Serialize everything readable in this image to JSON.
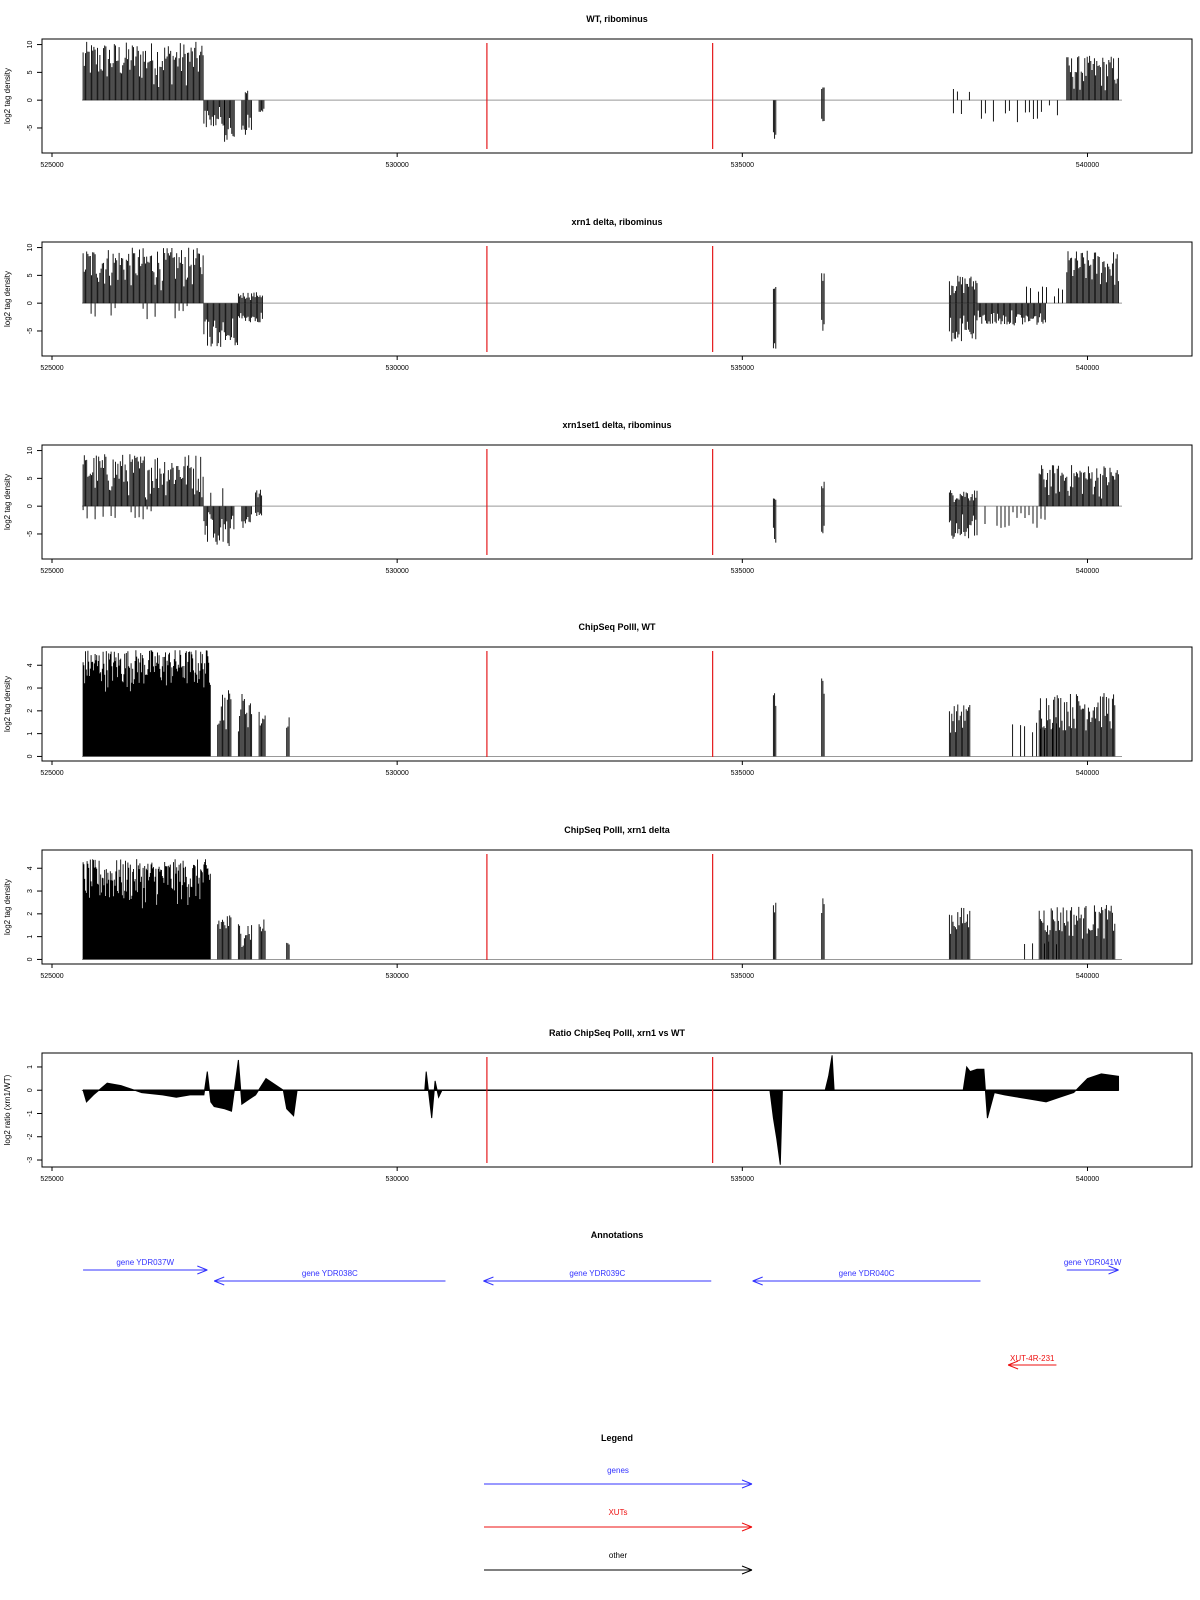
{
  "figure": {
    "x_range": [
      525000,
      540500
    ],
    "x_ticks": [
      525000,
      530000,
      535000,
      540000
    ],
    "x_tick_labels": [
      "525000",
      "530000",
      "535000",
      "540000"
    ],
    "marker_lines": [
      531300,
      534570
    ],
    "colors": {
      "signal": "#000000",
      "marker": "#e41a1c",
      "genes": "#3333ff",
      "xuts": "#ee1111",
      "other": "#000000",
      "zero_line": "#999999"
    }
  },
  "chart_data": [
    {
      "type": "bar",
      "title": "WT, ribominus",
      "ylabel": "log2 tag density",
      "ylim": [
        -9.5,
        11
      ],
      "y_ticks": [
        -5,
        0,
        5,
        10
      ],
      "y_tick_labels": [
        "-5",
        "0",
        "5",
        "10"
      ],
      "segments": [
        {
          "x": [
            525450,
            527200
          ],
          "sign": 1,
          "min": 2,
          "max": 10.5
        },
        {
          "x": [
            527200,
            527500
          ],
          "sign": -1,
          "min": 1,
          "max": 5
        },
        {
          "x": [
            527500,
            527650
          ],
          "sign": -1,
          "min": 3,
          "max": 7.5
        },
        {
          "x": [
            527750,
            527900
          ],
          "sign": -1,
          "min": 1,
          "max": 6.5
        },
        {
          "x": [
            527800,
            527850
          ],
          "sign": 1,
          "min": 0.5,
          "max": 2
        },
        {
          "x": [
            528000,
            528080
          ],
          "sign": -1,
          "min": 1,
          "max": 3
        },
        {
          "x": [
            535450,
            535500
          ],
          "sign": -1,
          "min": 3,
          "max": 7
        },
        {
          "x": [
            536150,
            536200
          ],
          "sign": -1,
          "min": 2,
          "max": 4
        },
        {
          "x": [
            536150,
            536200
          ],
          "sign": 1,
          "min": 1,
          "max": 3
        },
        {
          "x": [
            538000,
            539600
          ],
          "sign": -1,
          "min": 0.5,
          "max": 4,
          "sparse": true
        },
        {
          "x": [
            538000,
            538300
          ],
          "sign": 1,
          "min": 0.5,
          "max": 2.5,
          "sparse": true
        },
        {
          "x": [
            539700,
            540450
          ],
          "sign": 1,
          "min": 1,
          "max": 8
        }
      ]
    },
    {
      "type": "bar",
      "title": "xrn1 delta, ribominus",
      "ylabel": "log2 tag density",
      "ylim": [
        -9.5,
        11
      ],
      "y_ticks": [
        -5,
        0,
        5,
        10
      ],
      "y_tick_labels": [
        "-5",
        "0",
        "5",
        "10"
      ],
      "segments": [
        {
          "x": [
            525450,
            527200
          ],
          "sign": 1,
          "min": 2,
          "max": 10
        },
        {
          "x": [
            525450,
            527200
          ],
          "sign": -1,
          "min": 0.3,
          "max": 3,
          "sparse": true
        },
        {
          "x": [
            527200,
            527700
          ],
          "sign": -1,
          "min": 2,
          "max": 8
        },
        {
          "x": [
            527700,
            528050
          ],
          "sign": -1,
          "min": 1,
          "max": 3.5
        },
        {
          "x": [
            527700,
            528050
          ],
          "sign": 1,
          "min": 0.5,
          "max": 2
        },
        {
          "x": [
            535450,
            535500
          ],
          "sign": -1,
          "min": 4,
          "max": 9
        },
        {
          "x": [
            535450,
            535500
          ],
          "sign": 1,
          "min": 1,
          "max": 3
        },
        {
          "x": [
            536150,
            536200
          ],
          "sign": 1,
          "min": 2,
          "max": 6
        },
        {
          "x": [
            536150,
            536200
          ],
          "sign": -1,
          "min": 2,
          "max": 6
        },
        {
          "x": [
            538000,
            538400
          ],
          "sign": -1,
          "min": 2,
          "max": 7
        },
        {
          "x": [
            538000,
            538400
          ],
          "sign": 1,
          "min": 1,
          "max": 5
        },
        {
          "x": [
            538400,
            539400
          ],
          "sign": -1,
          "min": 1,
          "max": 4
        },
        {
          "x": [
            539000,
            539700
          ],
          "sign": 1,
          "min": 0.5,
          "max": 3,
          "sparse": true
        },
        {
          "x": [
            539700,
            540450
          ],
          "sign": 1,
          "min": 2,
          "max": 9.5
        }
      ]
    },
    {
      "type": "bar",
      "title": "xrn1set1 delta, ribominus",
      "ylabel": "log2 tag density",
      "ylim": [
        -9.5,
        11
      ],
      "y_ticks": [
        -5,
        0,
        5,
        10
      ],
      "y_tick_labels": [
        "-5",
        "0",
        "5",
        "10"
      ],
      "segments": [
        {
          "x": [
            525450,
            527200
          ],
          "sign": 1,
          "min": 1,
          "max": 9.5
        },
        {
          "x": [
            525450,
            526500
          ],
          "sign": -1,
          "min": 0.3,
          "max": 2.5,
          "sparse": true
        },
        {
          "x": [
            527200,
            527650
          ],
          "sign": -1,
          "min": 1,
          "max": 7.5
        },
        {
          "x": [
            527300,
            527500
          ],
          "sign": 1,
          "min": 0.5,
          "max": 3.5,
          "sparse": true
        },
        {
          "x": [
            527750,
            527900
          ],
          "sign": -1,
          "min": 1,
          "max": 4
        },
        {
          "x": [
            527950,
            528050
          ],
          "sign": 1,
          "min": 0.5,
          "max": 3
        },
        {
          "x": [
            527950,
            528050
          ],
          "sign": -1,
          "min": 0.5,
          "max": 2
        },
        {
          "x": [
            535450,
            535500
          ],
          "sign": -1,
          "min": 2,
          "max": 7
        },
        {
          "x": [
            535450,
            535500
          ],
          "sign": 1,
          "min": 1,
          "max": 2
        },
        {
          "x": [
            536150,
            536200
          ],
          "sign": 1,
          "min": 2,
          "max": 4.5
        },
        {
          "x": [
            536150,
            536200
          ],
          "sign": -1,
          "min": 2,
          "max": 5
        },
        {
          "x": [
            538000,
            538400
          ],
          "sign": -1,
          "min": 1,
          "max": 6
        },
        {
          "x": [
            538000,
            538400
          ],
          "sign": 1,
          "min": 0.5,
          "max": 3
        },
        {
          "x": [
            538400,
            539400
          ],
          "sign": -1,
          "min": 0.5,
          "max": 4,
          "sparse": true
        },
        {
          "x": [
            539300,
            540450
          ],
          "sign": 1,
          "min": 1,
          "max": 7.5
        }
      ]
    },
    {
      "type": "bar",
      "title": "ChipSeq PolII, WT",
      "ylabel": "log2 tag density",
      "ylim": [
        -0.2,
        4.8
      ],
      "y_ticks": [
        0,
        1,
        2,
        3,
        4
      ],
      "y_tick_labels": [
        "0",
        "1",
        "2",
        "3",
        "4"
      ],
      "segments": [
        {
          "x": [
            525450,
            527300
          ],
          "sign": 1,
          "min": 2.8,
          "max": 4.7,
          "dense": true
        },
        {
          "x": [
            527400,
            527600
          ],
          "sign": 1,
          "min": 1,
          "max": 3
        },
        {
          "x": [
            527700,
            527900
          ],
          "sign": 1,
          "min": 1,
          "max": 2.8
        },
        {
          "x": [
            528000,
            528100
          ],
          "sign": 1,
          "min": 1,
          "max": 2
        },
        {
          "x": [
            528400,
            528450
          ],
          "sign": 1,
          "min": 1,
          "max": 2
        },
        {
          "x": [
            535450,
            535500
          ],
          "sign": 1,
          "min": 2,
          "max": 3
        },
        {
          "x": [
            536150,
            536200
          ],
          "sign": 1,
          "min": 2,
          "max": 3.5
        },
        {
          "x": [
            538000,
            538300
          ],
          "sign": 1,
          "min": 1,
          "max": 2.3
        },
        {
          "x": [
            538800,
            539600
          ],
          "sign": 1,
          "min": 1,
          "max": 1.5,
          "sparse": true
        },
        {
          "x": [
            539300,
            540400
          ],
          "sign": 1,
          "min": 1,
          "max": 2.8
        }
      ]
    },
    {
      "type": "bar",
      "title": "ChipSeq PolII, xrn1 delta",
      "ylabel": "log2 tag density",
      "ylim": [
        -0.2,
        4.8
      ],
      "y_ticks": [
        0,
        1,
        2,
        3,
        4
      ],
      "y_tick_labels": [
        "0",
        "1",
        "2",
        "3",
        "4"
      ],
      "segments": [
        {
          "x": [
            525450,
            527300
          ],
          "sign": 1,
          "min": 2.2,
          "max": 4.4,
          "dense": true
        },
        {
          "x": [
            527400,
            527600
          ],
          "sign": 1,
          "min": 0.8,
          "max": 2
        },
        {
          "x": [
            527700,
            527900
          ],
          "sign": 1,
          "min": 0.5,
          "max": 1.7
        },
        {
          "x": [
            528000,
            528100
          ],
          "sign": 1,
          "min": 0.8,
          "max": 1.8
        },
        {
          "x": [
            528400,
            528450
          ],
          "sign": 1,
          "min": 0.5,
          "max": 0.8
        },
        {
          "x": [
            535450,
            535500
          ],
          "sign": 1,
          "min": 1.5,
          "max": 2.5
        },
        {
          "x": [
            536150,
            536200
          ],
          "sign": 1,
          "min": 2,
          "max": 2.8
        },
        {
          "x": [
            538000,
            538300
          ],
          "sign": 1,
          "min": 0.8,
          "max": 2.3
        },
        {
          "x": [
            538800,
            539600
          ],
          "sign": 1,
          "min": 0.6,
          "max": 0.8,
          "sparse": true
        },
        {
          "x": [
            539300,
            540400
          ],
          "sign": 1,
          "min": 0.8,
          "max": 2.4
        }
      ]
    },
    {
      "type": "area",
      "title": "Ratio ChipSeq PolII, xrn1 vs WT",
      "ylabel": "log2 ratio (xrn1/WT)",
      "ylim": [
        -3.3,
        1.6
      ],
      "y_ticks": [
        -3,
        -2,
        -1,
        0,
        1
      ],
      "y_tick_labels": [
        "-3",
        "-2",
        "-1",
        "0",
        "1"
      ],
      "x": [
        525450,
        525500,
        525600,
        525800,
        526000,
        526300,
        526600,
        526800,
        527000,
        527200,
        527250,
        527300,
        527350,
        527500,
        527600,
        527700,
        527750,
        527850,
        527950,
        528100,
        528350,
        528400,
        528500,
        528550,
        530400,
        530420,
        530500,
        530550,
        530600,
        530650,
        535400,
        535450,
        535500,
        535550,
        535580,
        536200,
        536250,
        536300,
        536330,
        538200,
        538250,
        538300,
        538400,
        538500,
        538550,
        538650,
        538800,
        539000,
        539200,
        539400,
        539600,
        539800,
        540000,
        540200,
        540450
      ],
      "y": [
        0,
        -0.5,
        -0.2,
        0.3,
        0.2,
        -0.1,
        -0.2,
        -0.3,
        -0.2,
        -0.2,
        0.8,
        -0.5,
        -0.7,
        -0.8,
        -0.9,
        1.3,
        -0.6,
        -0.4,
        -0.2,
        0.5,
        0,
        -0.8,
        -1.1,
        0,
        0,
        0.8,
        -1.2,
        0.4,
        -0.3,
        0,
        0,
        -1.2,
        -2.1,
        -3.2,
        0,
        0,
        0.6,
        1.5,
        0,
        0,
        1.0,
        0.8,
        0.9,
        0.9,
        -1.2,
        -0.1,
        -0.2,
        -0.3,
        -0.4,
        -0.5,
        -0.3,
        -0.1,
        0.5,
        0.7,
        0.6
      ]
    }
  ],
  "annotations": {
    "title": "Annotations",
    "genes": [
      {
        "label": "gene YDR037W",
        "start": 525450,
        "end": 527250,
        "dir": "right",
        "row": 0
      },
      {
        "label": "gene YDR038C",
        "start": 527350,
        "end": 530700,
        "dir": "left",
        "row": 1
      },
      {
        "label": "gene YDR039C",
        "start": 531250,
        "end": 534550,
        "dir": "left",
        "row": 1
      },
      {
        "label": "gene YDR040C",
        "start": 535150,
        "end": 538450,
        "dir": "left",
        "row": 1
      },
      {
        "label": "gene YDR041W",
        "start": 539700,
        "end": 540450,
        "dir": "right",
        "row": 0
      }
    ],
    "xuts": [
      {
        "label": "XUT-4R-231",
        "start": 538850,
        "end": 539550,
        "dir": "left"
      }
    ]
  },
  "legend": {
    "title": "Legend",
    "items": [
      {
        "label": "genes",
        "color_key": "genes"
      },
      {
        "label": "XUTs",
        "color_key": "xuts"
      },
      {
        "label": "other",
        "color_key": "other"
      }
    ]
  }
}
